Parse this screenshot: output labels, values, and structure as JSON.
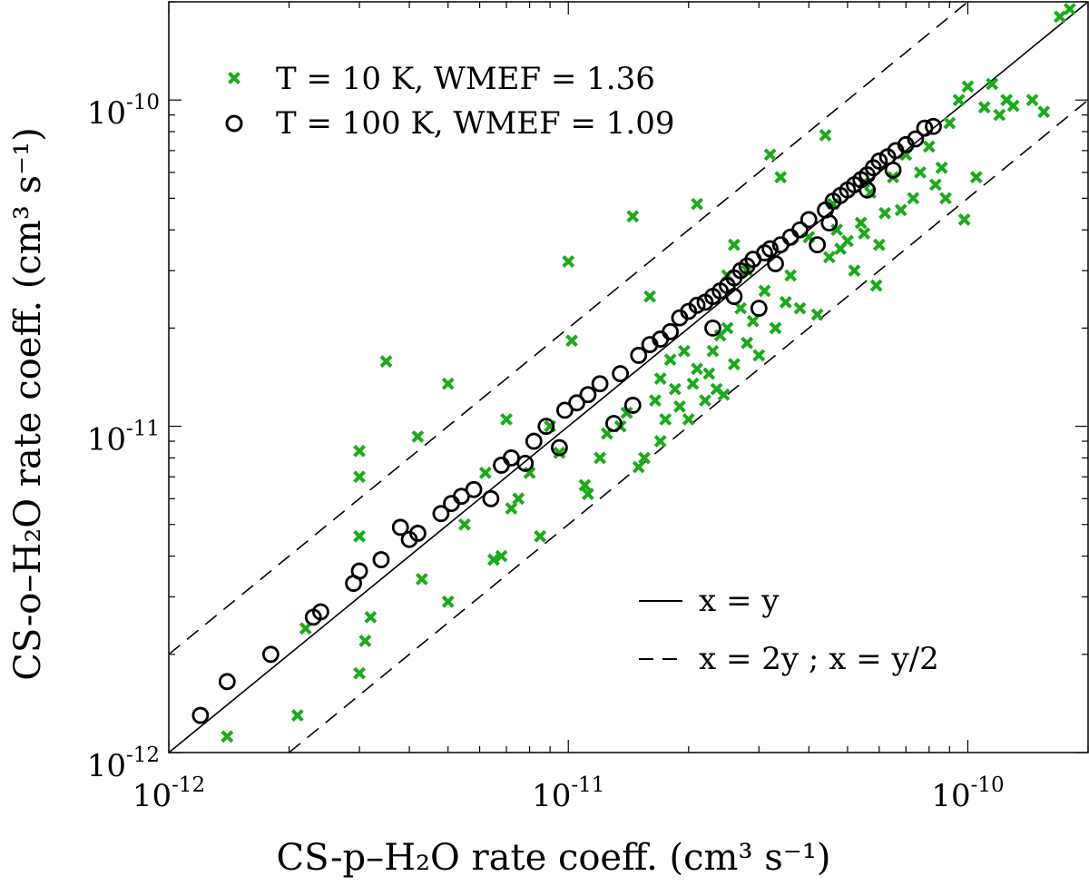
{
  "chart_data": {
    "type": "scatter",
    "title": "",
    "xlabel": "CS-p–H₂O rate coeff. (cm³ s⁻¹)",
    "ylabel": "CS-o–H₂O rate coeff. (cm³ s⁻¹)",
    "xscale": "log",
    "yscale": "log",
    "xlim": [
      1e-12,
      2e-10
    ],
    "ylim": [
      1e-12,
      2e-10
    ],
    "x_ticks": [
      1e-12,
      1e-11,
      1e-10
    ],
    "y_ticks": [
      1e-12,
      1e-11,
      1e-10
    ],
    "x_tick_labels": [
      {
        "base": "10",
        "exp": "-12"
      },
      {
        "base": "10",
        "exp": "-11"
      },
      {
        "base": "10",
        "exp": "-10"
      }
    ],
    "y_tick_labels": [
      {
        "base": "10",
        "exp": "-12"
      },
      {
        "base": "10",
        "exp": "-11"
      },
      {
        "base": "10",
        "exp": "-10"
      }
    ],
    "grid": false,
    "legend_top": {
      "position": "top-left",
      "entries": [
        {
          "marker": "x",
          "color": "#1aaa1a",
          "label": "T = 10 K,   WMEF = 1.36"
        },
        {
          "marker": "o",
          "color": "#000000",
          "label": "T = 100 K,   WMEF = 1.09"
        }
      ]
    },
    "legend_bottom": {
      "position": "bottom-right",
      "entries": [
        {
          "line": "solid",
          "label": "x = y"
        },
        {
          "line": "dashed",
          "label": "x = 2y ; x = y/2"
        }
      ]
    },
    "lines": [
      {
        "name": "x = y",
        "style": "solid",
        "factor": 1
      },
      {
        "name": "x = 2y",
        "style": "dashed",
        "factor": 2
      },
      {
        "name": "x = y/2",
        "style": "dashed",
        "factor": 0.5
      }
    ],
    "series": [
      {
        "name": "T = 10 K",
        "marker": "x",
        "color": "#1aaa1a",
        "points": [
          [
            1.4e-12,
            1.12e-12
          ],
          [
            2.1e-12,
            1.3e-12
          ],
          [
            2.2e-12,
            2.4e-12
          ],
          [
            3e-12,
            1.75e-12
          ],
          [
            3.1e-12,
            2.2e-12
          ],
          [
            3.2e-12,
            2.6e-12
          ],
          [
            3e-12,
            4.6e-12
          ],
          [
            3e-12,
            7e-12
          ],
          [
            3e-12,
            8.4e-12
          ],
          [
            3.5e-12,
            1.58e-11
          ],
          [
            4.2e-12,
            9.3e-12
          ],
          [
            4.3e-12,
            3.4e-12
          ],
          [
            5e-12,
            1.35e-11
          ],
          [
            5e-12,
            2.9e-12
          ],
          [
            5.5e-12,
            5e-12
          ],
          [
            6.2e-12,
            7.2e-12
          ],
          [
            6.5e-12,
            3.9e-12
          ],
          [
            6.8e-12,
            4e-12
          ],
          [
            7e-12,
            1.05e-11
          ],
          [
            7.2e-12,
            5.6e-12
          ],
          [
            7.5e-12,
            6e-12
          ],
          [
            8e-12,
            7.2e-12
          ],
          [
            8.5e-12,
            4.6e-12
          ],
          [
            9e-12,
            1e-11
          ],
          [
            9.5e-12,
            8.3e-12
          ],
          [
            1e-11,
            3.2e-11
          ],
          [
            1.02e-11,
            1.83e-11
          ],
          [
            1.1e-11,
            6.6e-12
          ],
          [
            1.12e-11,
            6.2e-12
          ],
          [
            1.2e-11,
            8e-12
          ],
          [
            1.25e-11,
            9.5e-12
          ],
          [
            1.35e-11,
            1e-11
          ],
          [
            1.4e-11,
            1.1e-11
          ],
          [
            1.45e-11,
            4.4e-11
          ],
          [
            1.5e-11,
            7.5e-12
          ],
          [
            1.55e-11,
            8e-12
          ],
          [
            1.6e-11,
            2.5e-11
          ],
          [
            1.65e-11,
            1.2e-11
          ],
          [
            1.7e-11,
            9e-12
          ],
          [
            1.7e-11,
            1.4e-11
          ],
          [
            1.75e-11,
            1.05e-11
          ],
          [
            1.8e-11,
            1.6e-11
          ],
          [
            1.85e-11,
            1.3e-11
          ],
          [
            1.9e-11,
            1.15e-11
          ],
          [
            1.95e-11,
            1.7e-11
          ],
          [
            2e-11,
            1.05e-11
          ],
          [
            2.05e-11,
            1.35e-11
          ],
          [
            2.1e-11,
            1.5e-11
          ],
          [
            2.1e-11,
            4.8e-11
          ],
          [
            2.2e-11,
            1.2e-11
          ],
          [
            2.25e-11,
            1.45e-11
          ],
          [
            2.3e-11,
            1.7e-11
          ],
          [
            2.35e-11,
            1.3e-11
          ],
          [
            2.4e-11,
            1.9e-11
          ],
          [
            2.45e-11,
            1.25e-11
          ],
          [
            2.5e-11,
            2e-11
          ],
          [
            2.6e-11,
            1.55e-11
          ],
          [
            2.6e-11,
            3.6e-11
          ],
          [
            2.7e-11,
            2.3e-11
          ],
          [
            2.8e-11,
            1.8e-11
          ],
          [
            2.9e-11,
            2.1e-11
          ],
          [
            3e-11,
            1.65e-11
          ],
          [
            3.1e-11,
            2.6e-11
          ],
          [
            3.2e-11,
            6.8e-11
          ],
          [
            3.3e-11,
            2e-11
          ],
          [
            3.4e-11,
            5.8e-11
          ],
          [
            3.5e-11,
            2.4e-11
          ],
          [
            3.6e-11,
            2.9e-11
          ],
          [
            3.8e-11,
            2.3e-11
          ],
          [
            4e-11,
            3.8e-11
          ],
          [
            4.2e-11,
            2.2e-11
          ],
          [
            4.4e-11,
            7.8e-11
          ],
          [
            4.5e-11,
            3.3e-11
          ],
          [
            4.7e-11,
            4e-11
          ],
          [
            4.8e-11,
            3.5e-11
          ],
          [
            5e-11,
            3.7e-11
          ],
          [
            5.2e-11,
            3e-11
          ],
          [
            5.4e-11,
            4.2e-11
          ],
          [
            5.5e-11,
            3.9e-11
          ],
          [
            5.7e-11,
            5.2e-11
          ],
          [
            5.9e-11,
            2.7e-11
          ],
          [
            6e-11,
            3.6e-11
          ],
          [
            6.2e-11,
            4.5e-11
          ],
          [
            6.5e-11,
            5.8e-11
          ],
          [
            6.8e-11,
            4.6e-11
          ],
          [
            7e-11,
            6.8e-11
          ],
          [
            7.3e-11,
            5e-11
          ],
          [
            7.6e-11,
            6e-11
          ],
          [
            8e-11,
            7.2e-11
          ],
          [
            8.3e-11,
            5.5e-11
          ],
          [
            8.6e-11,
            6.2e-11
          ],
          [
            8.8e-11,
            5e-11
          ],
          [
            9e-11,
            8.5e-11
          ],
          [
            9.5e-11,
            1e-10
          ],
          [
            9.8e-11,
            4.3e-11
          ],
          [
            1e-10,
            1.1e-10
          ],
          [
            1.05e-10,
            5.8e-11
          ],
          [
            1.1e-10,
            9.5e-11
          ],
          [
            1.15e-10,
            1.12e-10
          ],
          [
            1.2e-10,
            9e-11
          ],
          [
            1.25e-10,
            1e-10
          ],
          [
            1.3e-10,
            9.6e-11
          ],
          [
            1.45e-10,
            1e-10
          ],
          [
            1.55e-10,
            9.2e-11
          ],
          [
            1.7e-10,
            1.8e-10
          ],
          [
            1.8e-10,
            1.9e-10
          ],
          [
            2.5e-11,
            2.9e-11
          ],
          [
            2.8e-11,
            3e-11
          ],
          [
            4.6e-11,
            4.8e-11
          ],
          [
            5.5e-11,
            5.6e-11
          ]
        ]
      },
      {
        "name": "T = 100 K",
        "marker": "o",
        "color": "#000000",
        "points": [
          [
            1.2e-12,
            1.3e-12
          ],
          [
            1.4e-12,
            1.65e-12
          ],
          [
            1.8e-12,
            2e-12
          ],
          [
            2.3e-12,
            2.6e-12
          ],
          [
            2.4e-12,
            2.7e-12
          ],
          [
            2.9e-12,
            3.3e-12
          ],
          [
            3e-12,
            3.6e-12
          ],
          [
            3.4e-12,
            3.9e-12
          ],
          [
            3.8e-12,
            4.9e-12
          ],
          [
            4e-12,
            4.5e-12
          ],
          [
            4.2e-12,
            4.7e-12
          ],
          [
            4.8e-12,
            5.4e-12
          ],
          [
            5.1e-12,
            5.8e-12
          ],
          [
            5.4e-12,
            6.1e-12
          ],
          [
            5.8e-12,
            6.4e-12
          ],
          [
            6.4e-12,
            6e-12
          ],
          [
            6.8e-12,
            7.6e-12
          ],
          [
            7.2e-12,
            8e-12
          ],
          [
            7.8e-12,
            7.7e-12
          ],
          [
            8.2e-12,
            9e-12
          ],
          [
            8.8e-12,
            1e-11
          ],
          [
            9.5e-12,
            8.6e-12
          ],
          [
            9.8e-12,
            1.12e-11
          ],
          [
            1.05e-11,
            1.18e-11
          ],
          [
            1.12e-11,
            1.25e-11
          ],
          [
            1.2e-11,
            1.35e-11
          ],
          [
            1.3e-11,
            1.02e-11
          ],
          [
            1.35e-11,
            1.45e-11
          ],
          [
            1.45e-11,
            1.16e-11
          ],
          [
            1.5e-11,
            1.65e-11
          ],
          [
            1.6e-11,
            1.78e-11
          ],
          [
            1.7e-11,
            1.85e-11
          ],
          [
            1.8e-11,
            1.95e-11
          ],
          [
            1.9e-11,
            2.15e-11
          ],
          [
            2e-11,
            2.25e-11
          ],
          [
            2.1e-11,
            2.35e-11
          ],
          [
            2.2e-11,
            2.4e-11
          ],
          [
            2.3e-11,
            2.5e-11
          ],
          [
            2.4e-11,
            2.6e-11
          ],
          [
            2.5e-11,
            2.7e-11
          ],
          [
            2.6e-11,
            2.85e-11
          ],
          [
            2.7e-11,
            3e-11
          ],
          [
            2.8e-11,
            3.1e-11
          ],
          [
            2.9e-11,
            3.25e-11
          ],
          [
            3e-11,
            2.3e-11
          ],
          [
            3.1e-11,
            3.4e-11
          ],
          [
            3.2e-11,
            3.5e-11
          ],
          [
            3.4e-11,
            3.6e-11
          ],
          [
            3.6e-11,
            3.8e-11
          ],
          [
            3.8e-11,
            4e-11
          ],
          [
            4e-11,
            4.3e-11
          ],
          [
            4.2e-11,
            3.6e-11
          ],
          [
            4.4e-11,
            4.6e-11
          ],
          [
            4.6e-11,
            4.9e-11
          ],
          [
            4.8e-11,
            5.1e-11
          ],
          [
            5e-11,
            5.3e-11
          ],
          [
            5.2e-11,
            5.5e-11
          ],
          [
            5.4e-11,
            5.7e-11
          ],
          [
            5.6e-11,
            5.9e-11
          ],
          [
            5.8e-11,
            6.2e-11
          ],
          [
            6e-11,
            6.5e-11
          ],
          [
            6.3e-11,
            6.7e-11
          ],
          [
            6.6e-11,
            7e-11
          ],
          [
            7e-11,
            7.3e-11
          ],
          [
            7.4e-11,
            7.6e-11
          ],
          [
            7.8e-11,
            8.2e-11
          ],
          [
            8.2e-11,
            8.3e-11
          ],
          [
            2.3e-11,
            2e-11
          ],
          [
            2.6e-11,
            2.5e-11
          ],
          [
            3.3e-11,
            3.15e-11
          ],
          [
            4.5e-11,
            4.2e-11
          ],
          [
            5.6e-11,
            5.3e-11
          ],
          [
            6.5e-11,
            6.1e-11
          ]
        ]
      }
    ]
  }
}
